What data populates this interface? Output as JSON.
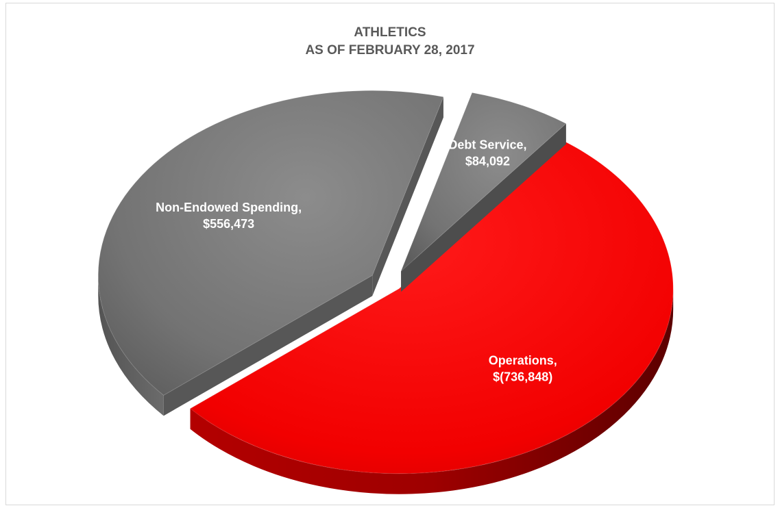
{
  "chart_data": {
    "type": "pie",
    "title": "ATHLETICS",
    "subtitle": "AS OF FEBRUARY 28, 2017",
    "slices": [
      {
        "label": "Operations,",
        "value_text": "$(736,848)",
        "value": 736848,
        "color": "#ff0000"
      },
      {
        "label": "Non-Endowed Spending,",
        "value_text": "$556,473",
        "value": 556473,
        "color": "#7f7f7f"
      },
      {
        "label": "Debt Service,",
        "value_text": "$84,092",
        "value": 84092,
        "color": "#7f7f7f"
      }
    ]
  }
}
